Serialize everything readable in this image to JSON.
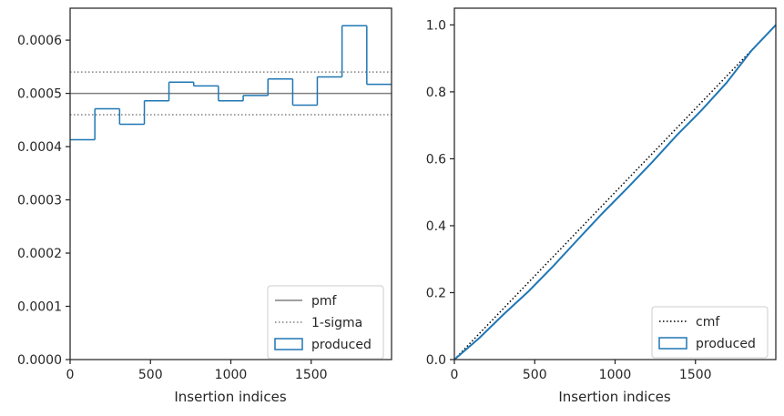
{
  "chart_data": [
    {
      "type": "histogram-step",
      "title": "",
      "xlabel": "Insertion indices",
      "ylabel": "",
      "xlim": [
        0,
        2000
      ],
      "ylim": [
        0,
        0.00066
      ],
      "xticks": [
        0,
        500,
        1000,
        1500
      ],
      "xtick_labels": [
        "0",
        "500",
        "1000",
        "1500"
      ],
      "yticks": [
        0,
        0.0001,
        0.0002,
        0.0003,
        0.0004,
        0.0005,
        0.0006
      ],
      "ytick_labels": [
        "0.0000",
        "0.0001",
        "0.0002",
        "0.0003",
        "0.0004",
        "0.0005",
        "0.0006"
      ],
      "bin_edges": [
        0,
        154,
        308,
        462,
        615,
        769,
        923,
        1077,
        1231,
        1385,
        1538,
        1692,
        1846,
        2000
      ],
      "values": [
        0.000413,
        0.000471,
        0.000442,
        0.000486,
        0.000521,
        0.000514,
        0.000486,
        0.000496,
        0.000527,
        0.000478,
        0.000531,
        0.000627,
        0.000517
      ],
      "pmf": 0.0005,
      "sigma_band": [
        0.00046,
        0.00054
      ],
      "legend": {
        "position": "lower-right",
        "entries": [
          {
            "label": "pmf",
            "style": "solid",
            "color": "#808080"
          },
          {
            "label": "1-sigma",
            "style": "dotted",
            "color": "#808080"
          },
          {
            "label": "produced",
            "style": "box",
            "color": "#1f77b4"
          }
        ]
      }
    },
    {
      "type": "line",
      "title": "",
      "xlabel": "Insertion indices",
      "ylabel": "",
      "xlim": [
        0,
        2000
      ],
      "ylim": [
        0,
        1.05
      ],
      "xticks": [
        0,
        500,
        1000,
        1500
      ],
      "xtick_labels": [
        "0",
        "500",
        "1000",
        "1500"
      ],
      "yticks": [
        0,
        0.2,
        0.4,
        0.6,
        0.8,
        1.0
      ],
      "ytick_labels": [
        "0.0",
        "0.2",
        "0.4",
        "0.6",
        "0.8",
        "1.0"
      ],
      "series": [
        {
          "name": "cmf",
          "style": "dotted",
          "color": "#000000",
          "x": [
            0,
            2000
          ],
          "y": [
            0,
            1.0
          ]
        },
        {
          "name": "produced",
          "style": "solid",
          "color": "#1f77b4",
          "x": [
            0,
            154,
            308,
            462,
            615,
            769,
            923,
            1077,
            1231,
            1385,
            1538,
            1692,
            1846,
            2000
          ],
          "y": [
            0,
            0.064,
            0.136,
            0.204,
            0.279,
            0.359,
            0.438,
            0.513,
            0.59,
            0.671,
            0.745,
            0.826,
            0.922,
            1.0
          ]
        }
      ],
      "legend": {
        "position": "lower-right",
        "entries": [
          {
            "label": "cmf",
            "style": "dotted",
            "color": "#000000"
          },
          {
            "label": "produced",
            "style": "box",
            "color": "#1f77b4"
          }
        ]
      }
    }
  ]
}
